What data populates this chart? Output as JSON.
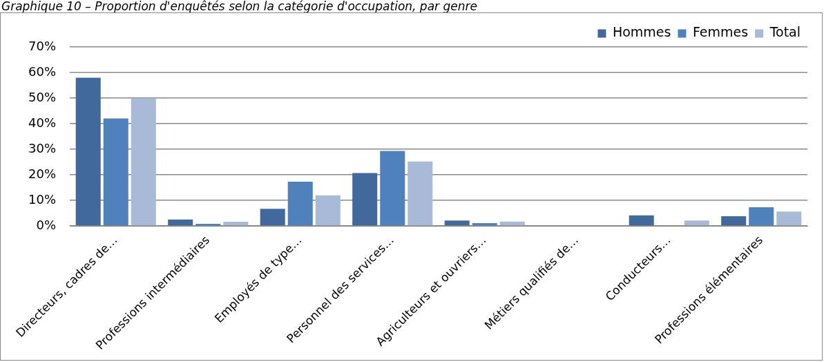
{
  "chart_data": {
    "type": "bar",
    "title": "Graphique 10 – Proportion d'enquêtés selon la catégorie d'occupation, par genre",
    "categories": [
      "Directeurs, cadres de…",
      "Professions intermédiaires",
      "Employés de type…",
      "Personnel des services…",
      "Agriculteurs et ouvriers…",
      "Métiers qualifiés de…",
      "Conducteurs…",
      "Professions élémentaires"
    ],
    "series": [
      {
        "name": "Hommes",
        "color": "#41699b",
        "values": [
          58,
          2.5,
          6.7,
          20.7,
          2.1,
          0,
          4.1,
          3.8
        ]
      },
      {
        "name": "Femmes",
        "color": "#4f81bd",
        "values": [
          42,
          0.8,
          17.3,
          29.3,
          1.1,
          0,
          0,
          7.3
        ]
      },
      {
        "name": "Total",
        "color": "#a9b9d8",
        "values": [
          50,
          1.6,
          12,
          25.2,
          1.7,
          0,
          2.1,
          5.6
        ]
      }
    ],
    "ylim": [
      0,
      70
    ],
    "yticks": [
      {
        "value": 0,
        "label": "0%"
      },
      {
        "value": 10,
        "label": "10%"
      },
      {
        "value": 20,
        "label": "20%"
      },
      {
        "value": 30,
        "label": "30%"
      },
      {
        "value": 40,
        "label": "40%"
      },
      {
        "value": 50,
        "label": "50%"
      },
      {
        "value": 60,
        "label": "60%"
      },
      {
        "value": 70,
        "label": "70%"
      }
    ],
    "grid": "y",
    "legend": "top right"
  }
}
